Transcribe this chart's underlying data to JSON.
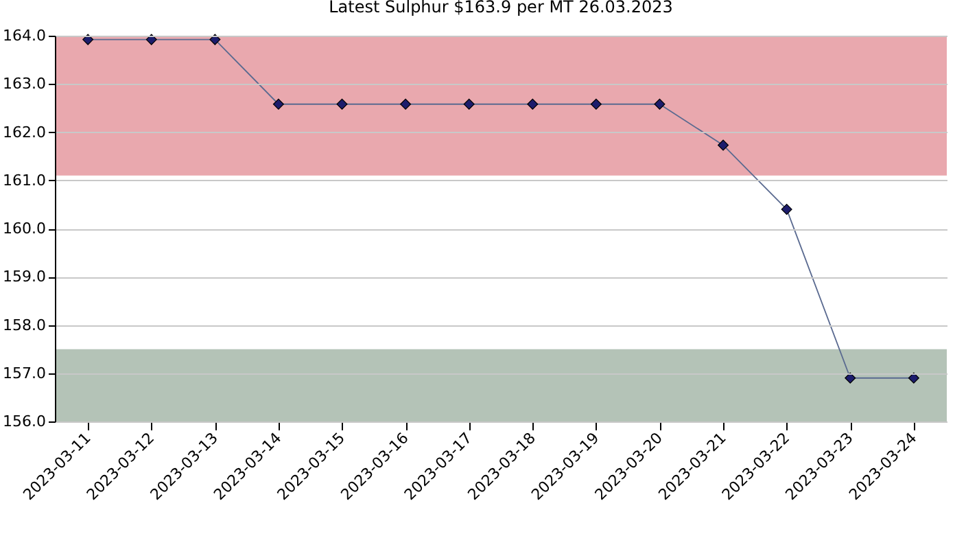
{
  "chart_data": {
    "type": "line",
    "title": "Latest Sulphur  $163.9 per MT 26.03.2023",
    "categories": [
      "2023-03-11",
      "2023-03-12",
      "2023-03-13",
      "2023-03-14",
      "2023-03-15",
      "2023-03-16",
      "2023-03-17",
      "2023-03-18",
      "2023-03-19",
      "2023-03-20",
      "2023-03-21",
      "2023-03-22",
      "2023-03-23",
      "2023-03-24"
    ],
    "series": [
      {
        "color": "#1c1c6c",
        "values": [
          163.92,
          163.92,
          163.92,
          162.58,
          162.58,
          162.58,
          162.58,
          162.58,
          162.58,
          162.58,
          161.73,
          160.4,
          156.9,
          156.9
        ]
      }
    ],
    "ylim": [
      156,
      164
    ],
    "yticks": [
      {
        "value": 156,
        "label": "156.0"
      },
      {
        "value": 157,
        "label": "157.0"
      },
      {
        "value": 158,
        "label": "158.0"
      },
      {
        "value": 159,
        "label": "159.0"
      },
      {
        "value": 160,
        "label": "160.0"
      },
      {
        "value": 161,
        "label": "161.0"
      },
      {
        "value": 162,
        "label": "162.0"
      },
      {
        "value": 163,
        "label": "163.0"
      },
      {
        "value": 164,
        "label": "164.0"
      }
    ],
    "bands": [
      {
        "axis": "y",
        "from": 161.1,
        "to": 164,
        "color": "#e9a8ae"
      },
      {
        "axis": "y",
        "from": 156,
        "to": 157.5,
        "color": "#b4c3b7"
      }
    ],
    "grid": "y",
    "marker": "diamond",
    "line_style": "solid"
  }
}
